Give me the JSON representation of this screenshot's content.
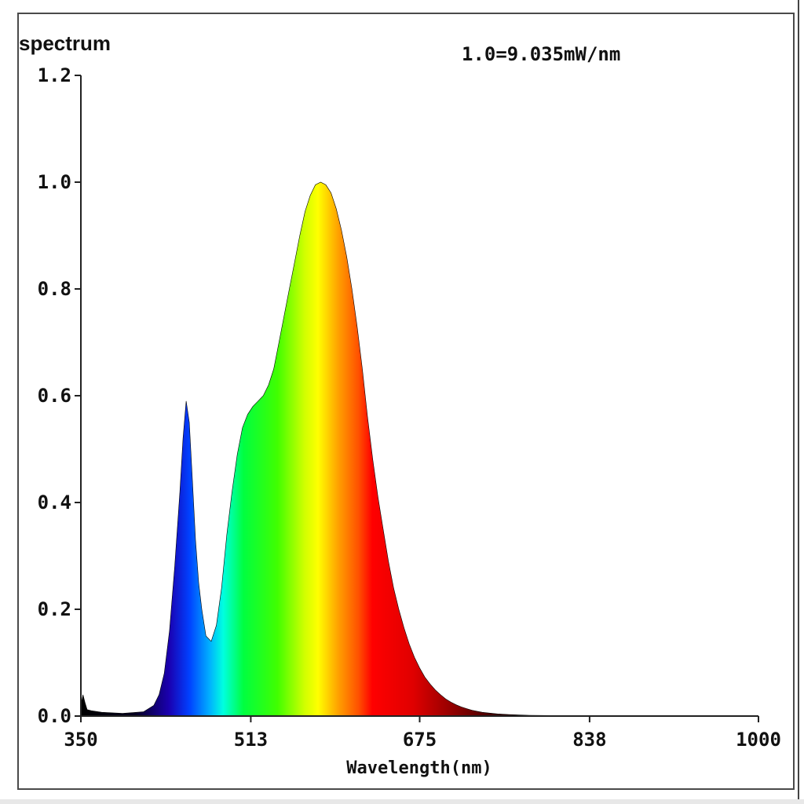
{
  "chart_data": {
    "type": "area",
    "title": "spectrum",
    "annotation": "1.0=9.035mW/nm",
    "xlabel": "Wavelength(nm)",
    "ylabel": "",
    "xlim": [
      350,
      1000
    ],
    "ylim": [
      0,
      1.2
    ],
    "x_ticks": [
      350,
      513,
      675,
      838,
      1000
    ],
    "x_tick_labels": [
      "350",
      "513",
      "675",
      "838",
      "1000"
    ],
    "y_ticks": [
      0.0,
      0.2,
      0.4,
      0.6,
      0.8,
      1.0,
      1.2
    ],
    "y_tick_labels": [
      "0.0",
      "0.2",
      "0.4",
      "0.6",
      "0.8",
      "1.0",
      "1.2"
    ],
    "grid": false,
    "fill": "visible-spectrum gradient",
    "series": [
      {
        "x": [
          350,
          352,
          354,
          356,
          360,
          370,
          390,
          410,
          420,
          425,
          430,
          435,
          440,
          445,
          448,
          451,
          454,
          457,
          460,
          463,
          466,
          470,
          475,
          480,
          485,
          490,
          495,
          500,
          505,
          510,
          515,
          520,
          525,
          530,
          535,
          540,
          545,
          550,
          555,
          560,
          565,
          570,
          575,
          580,
          585,
          590,
          595,
          600,
          605,
          610,
          615,
          620,
          625,
          630,
          635,
          640,
          645,
          650,
          655,
          660,
          665,
          670,
          675,
          680,
          685,
          690,
          695,
          700,
          705,
          710,
          715,
          720,
          725,
          730,
          735,
          740,
          750,
          760,
          770,
          780,
          800,
          820,
          850,
          900,
          950,
          1000
        ],
        "y": [
          0.02,
          0.04,
          0.025,
          0.012,
          0.01,
          0.007,
          0.005,
          0.008,
          0.02,
          0.04,
          0.08,
          0.16,
          0.28,
          0.42,
          0.52,
          0.59,
          0.55,
          0.44,
          0.33,
          0.25,
          0.2,
          0.15,
          0.14,
          0.17,
          0.24,
          0.34,
          0.42,
          0.49,
          0.54,
          0.565,
          0.58,
          0.59,
          0.6,
          0.62,
          0.65,
          0.7,
          0.75,
          0.8,
          0.85,
          0.9,
          0.945,
          0.975,
          0.995,
          1.0,
          0.995,
          0.98,
          0.95,
          0.91,
          0.86,
          0.8,
          0.73,
          0.65,
          0.56,
          0.48,
          0.41,
          0.35,
          0.29,
          0.24,
          0.2,
          0.165,
          0.135,
          0.11,
          0.09,
          0.073,
          0.06,
          0.049,
          0.04,
          0.032,
          0.026,
          0.021,
          0.017,
          0.014,
          0.011,
          0.009,
          0.007,
          0.006,
          0.004,
          0.003,
          0.002,
          0.0015,
          0.001,
          0.0007,
          0.0004,
          0.0002,
          0.0001,
          0.0
        ]
      }
    ]
  }
}
